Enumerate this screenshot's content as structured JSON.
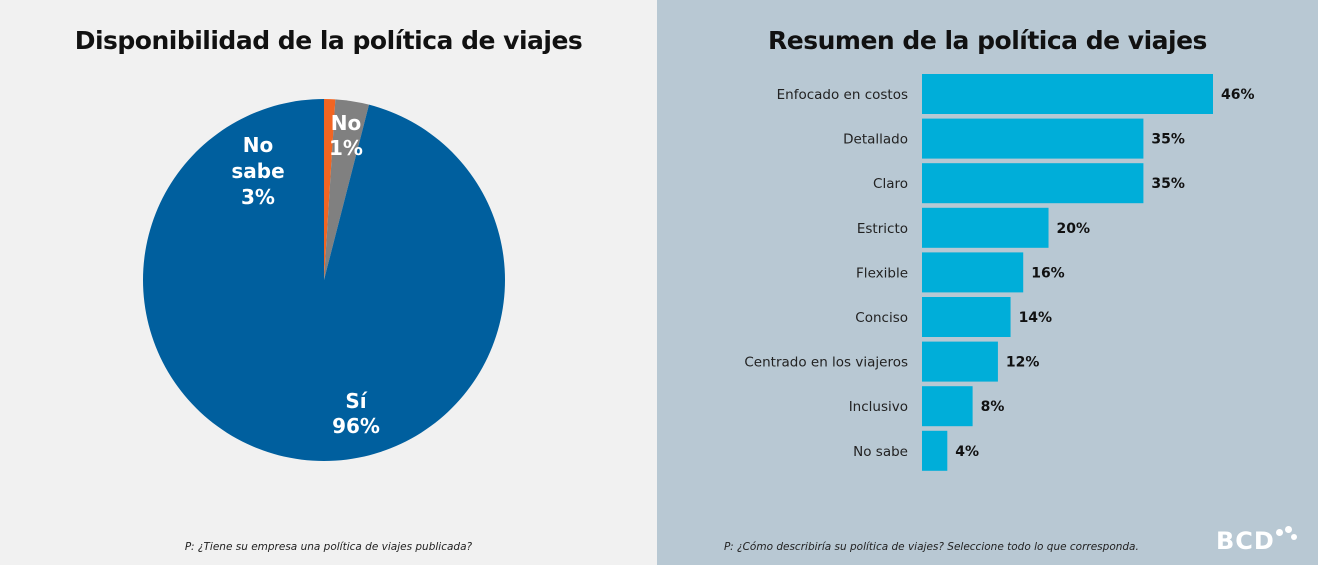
{
  "left": {
    "title": "Disponibilidad de la política de viajes",
    "footnote": "P: ¿Tiene su empresa una política de viajes publicada?"
  },
  "right": {
    "title": "Resumen de la política de viajes",
    "footnote": "P: ¿Cómo describiría su política de viajes? Seleccione todo lo que corresponda."
  },
  "logo": {
    "text": "BCD"
  },
  "colors": {
    "left_bg": "#f1f1f1",
    "right_bg": "#b8c8d3",
    "pie_si": "#005f9e",
    "pie_no_sabe": "#808080",
    "pie_no": "#f26522",
    "bar": "#00aed9"
  },
  "chart_data": [
    {
      "type": "pie",
      "title": "Disponibilidad de la política de viajes",
      "slices": [
        {
          "label": "No",
          "value": 1,
          "display": "1%",
          "color": "#f26522"
        },
        {
          "label": "No sabe",
          "value": 3,
          "display": "3%",
          "color": "#808080"
        },
        {
          "label": "Sí",
          "value": 96,
          "display": "96%",
          "color": "#005f9e"
        }
      ]
    },
    {
      "type": "bar",
      "orientation": "horizontal",
      "title": "Resumen de la política de viajes",
      "categories": [
        "Enfocado en costos",
        "Detallado",
        "Claro",
        "Estricto",
        "Flexible",
        "Conciso",
        "Centrado en los viajeros",
        "Inclusivo",
        "No sabe"
      ],
      "values": [
        46,
        35,
        35,
        20,
        16,
        14,
        12,
        8,
        4
      ],
      "value_labels": [
        "46%",
        "35%",
        "35%",
        "20%",
        "16%",
        "14%",
        "12%",
        "8%",
        "4%"
      ],
      "xlim": [
        0,
        46
      ],
      "color": "#00aed9",
      "grid": false
    }
  ]
}
